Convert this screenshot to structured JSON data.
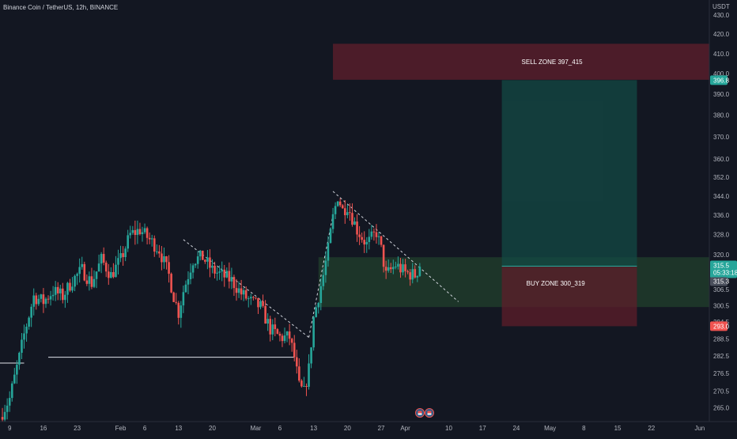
{
  "header": {
    "symbol_title": "Binance Coin / TetherUS, 12h, BINANCE"
  },
  "price_axis": {
    "currency_label": "USDT"
  },
  "colors": {
    "background": "#131722",
    "up": "#26a69a",
    "down": "#ef5350",
    "sell_zone": "#7b2030",
    "buy_zone": "#2a5a32",
    "target_zone": "#134a44",
    "stop_zone": "#5e1e2a",
    "axis_text": "#b2b5be",
    "current_price_bg": "#26a69a",
    "target_label_bg": "#26a69a",
    "stop_label_bg": "#ef5350"
  },
  "annotations": {
    "sell_zone_label": "SELL ZONE 397_415",
    "buy_zone_label": "BUY ZONE 300_319"
  },
  "price_labels": {
    "target": "396.8",
    "current_price": "315.5",
    "countdown": "05:33:18",
    "last_close": "315.3",
    "stop": "293.0"
  },
  "bottom_icons": [
    "flag-icon",
    "flag-icon"
  ],
  "chart_data": {
    "type": "candlestick",
    "title": "Binance Coin / TetherUS, 12h, BINANCE",
    "interval": "12h",
    "yaxis": {
      "scale": "log",
      "unit": "USDT",
      "range": [
        260.5,
        438
      ],
      "ticks": [
        265.0,
        270.5,
        276.5,
        282.5,
        288.5,
        294.5,
        300.5,
        306.5,
        312.5,
        320.0,
        328.0,
        336.0,
        344.0,
        352.0,
        360.0,
        370.0,
        380.0,
        390.0,
        400.0,
        410.0,
        420.0,
        430.0
      ]
    },
    "xaxis": {
      "range": [
        "2023-01-07",
        "2023-06-03"
      ],
      "ticks": [
        {
          "label": "9",
          "date": "2023-01-09"
        },
        {
          "label": "16",
          "date": "2023-01-16"
        },
        {
          "label": "23",
          "date": "2023-01-23"
        },
        {
          "label": "Feb",
          "date": "2023-02-01"
        },
        {
          "label": "6",
          "date": "2023-02-06"
        },
        {
          "label": "13",
          "date": "2023-02-13"
        },
        {
          "label": "20",
          "date": "2023-02-20"
        },
        {
          "label": "Mar",
          "date": "2023-03-01"
        },
        {
          "label": "6",
          "date": "2023-03-06"
        },
        {
          "label": "13",
          "date": "2023-03-13"
        },
        {
          "label": "20",
          "date": "2023-03-20"
        },
        {
          "label": "27",
          "date": "2023-03-27"
        },
        {
          "label": "Apr",
          "date": "2023-04-01"
        },
        {
          "label": "10",
          "date": "2023-04-10"
        },
        {
          "label": "17",
          "date": "2023-04-17"
        },
        {
          "label": "24",
          "date": "2023-04-24"
        },
        {
          "label": "May",
          "date": "2023-05-01"
        },
        {
          "label": "8",
          "date": "2023-05-08"
        },
        {
          "label": "15",
          "date": "2023-05-15"
        },
        {
          "label": "22",
          "date": "2023-05-22"
        },
        {
          "label": "Jun",
          "date": "2023-06-01"
        }
      ]
    },
    "price_path": [
      [
        "2023-01-07",
        262
      ],
      [
        "2023-01-09",
        268
      ],
      [
        "2023-01-11",
        282
      ],
      [
        "2023-01-12",
        290
      ],
      [
        "2023-01-14",
        304
      ],
      [
        "2023-01-16",
        302
      ],
      [
        "2023-01-18",
        306
      ],
      [
        "2023-01-20",
        304
      ],
      [
        "2023-01-22",
        310
      ],
      [
        "2023-01-24",
        314
      ],
      [
        "2023-01-26",
        309
      ],
      [
        "2023-01-28",
        318
      ],
      [
        "2023-01-30",
        312
      ],
      [
        "2023-02-01",
        318
      ],
      [
        "2023-02-03",
        328
      ],
      [
        "2023-02-05",
        330
      ],
      [
        "2023-02-07",
        326
      ],
      [
        "2023-02-09",
        322
      ],
      [
        "2023-02-11",
        312
      ],
      [
        "2023-02-12",
        304
      ],
      [
        "2023-02-13",
        298
      ],
      [
        "2023-02-14",
        306
      ],
      [
        "2023-02-16",
        318
      ],
      [
        "2023-02-18",
        319
      ],
      [
        "2023-02-20",
        314
      ],
      [
        "2023-02-22",
        312
      ],
      [
        "2023-02-24",
        310
      ],
      [
        "2023-02-26",
        305
      ],
      [
        "2023-02-28",
        302
      ],
      [
        "2023-03-02",
        300
      ],
      [
        "2023-03-04",
        292
      ],
      [
        "2023-03-06",
        289
      ],
      [
        "2023-03-08",
        289
      ],
      [
        "2023-03-09",
        282
      ],
      [
        "2023-03-10",
        272
      ],
      [
        "2023-03-11",
        270
      ],
      [
        "2023-03-12",
        278
      ],
      [
        "2023-03-13",
        296
      ],
      [
        "2023-03-14",
        304
      ],
      [
        "2023-03-15",
        312
      ],
      [
        "2023-03-16",
        322
      ],
      [
        "2023-03-17",
        335
      ],
      [
        "2023-03-18",
        344
      ],
      [
        "2023-03-19",
        338
      ],
      [
        "2023-03-20",
        340
      ],
      [
        "2023-03-22",
        330
      ],
      [
        "2023-03-24",
        324
      ],
      [
        "2023-03-26",
        329
      ],
      [
        "2023-03-27",
        322
      ],
      [
        "2023-03-28",
        312
      ],
      [
        "2023-03-30",
        316
      ],
      [
        "2023-04-01",
        313
      ],
      [
        "2023-04-03",
        312
      ],
      [
        "2023-04-04",
        315.3
      ]
    ],
    "current_price": 315.5,
    "last_close": 315.3,
    "candle_colors": {
      "up": "#26a69a",
      "down": "#ef5350"
    },
    "zones": [
      {
        "label": "SELL ZONE 397_415",
        "from": 397,
        "to": 415,
        "start": "2023-03-17",
        "end": "2023-06-03"
      },
      {
        "label": "BUY ZONE 300_319",
        "from": 300,
        "to": 319,
        "start": "2023-03-14",
        "end": "2023-06-03"
      }
    ],
    "position": {
      "entry": 315.5,
      "target": 396.8,
      "stop": 293.0,
      "start": "2023-04-21",
      "end": "2023-05-19"
    },
    "lines": [
      {
        "kind": "support",
        "points": [
          [
            "2023-01-17",
            282.0
          ],
          [
            "2023-03-09",
            282.0
          ]
        ]
      },
      {
        "kind": "support-left",
        "points": [
          [
            "2023-01-07",
            280.0
          ],
          [
            "2023-01-12",
            280.0
          ]
        ]
      },
      {
        "kind": "trendline",
        "style": "dashed",
        "points": [
          [
            "2023-02-14",
            326.0
          ],
          [
            "2023-03-12",
            289.0
          ]
        ]
      },
      {
        "kind": "trendline",
        "style": "dashed",
        "points": [
          [
            "2023-03-12",
            289.0
          ],
          [
            "2023-03-17",
            336.0
          ]
        ]
      },
      {
        "kind": "trendline",
        "style": "dashed",
        "points": [
          [
            "2023-03-17",
            346.0
          ],
          [
            "2023-04-12",
            302.0
          ]
        ]
      }
    ]
  }
}
